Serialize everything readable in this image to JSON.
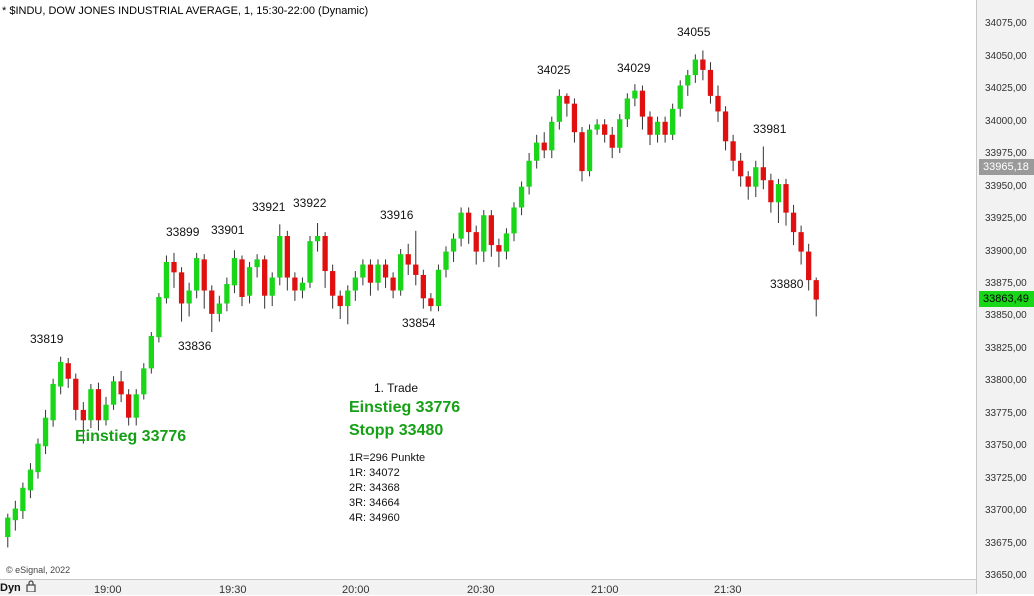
{
  "header": "* $INDU, DOW JONES INDUSTRIAL AVERAGE, 1, 15:30-22:00 (Dynamic)",
  "y_axis": {
    "ticks": [
      "34075,00",
      "34050,00",
      "34025,00",
      "34000,00",
      "33975,00",
      "33950,00",
      "33925,00",
      "33900,00",
      "33875,00",
      "33850,00",
      "33825,00",
      "33800,00",
      "33775,00",
      "33750,00",
      "33725,00",
      "33700,00",
      "33675,00",
      "33650,00"
    ],
    "gray_marker": "33965,18",
    "green_marker": "33863,49"
  },
  "x_axis": {
    "ticks": [
      "19:00",
      "19:30",
      "20:00",
      "20:30",
      "21:00",
      "21:30"
    ]
  },
  "level_labels": [
    "33819",
    "33836",
    "33899",
    "33901",
    "33921",
    "33922",
    "33916",
    "33854",
    "34025",
    "34029",
    "34055",
    "33981",
    "33880"
  ],
  "annotations": {
    "entry_left": "Einstieg 33776",
    "trade_title": "1. Trade",
    "entry": "Einstieg 33776",
    "stop": "Stopp 33480",
    "r_lines": [
      "1R=296 Punkte",
      "1R: 34072",
      "2R: 34368",
      "3R: 34664",
      "4R: 34960"
    ]
  },
  "footer": {
    "copyright": "© eSignal, 2022",
    "mode": "Dyn"
  },
  "colors": {
    "up": "#19d619",
    "down": "#e01010",
    "wick": "#333333",
    "gray_marker": "#9a9a9a",
    "green_marker": "#19d619",
    "text_green": "#16a016"
  },
  "chart_data": {
    "type": "candlestick",
    "title": "* $INDU, DOW JONES INDUSTRIAL AVERAGE, 1, 15:30-22:00 (Dynamic)",
    "y_range": [
      33650,
      34082
    ],
    "x_labels": [
      "19:00",
      "19:30",
      "20:00",
      "20:30",
      "21:00",
      "21:30"
    ],
    "candles": [
      [
        33680,
        33695,
        33672,
        33698
      ],
      [
        33693,
        33702,
        33685,
        33708
      ],
      [
        33700,
        33718,
        33694,
        33722
      ],
      [
        33716,
        33732,
        33710,
        33737
      ],
      [
        33730,
        33752,
        33725,
        33756
      ],
      [
        33750,
        33772,
        33744,
        33778
      ],
      [
        33770,
        33798,
        33765,
        33802
      ],
      [
        33796,
        33815,
        33790,
        33819
      ],
      [
        33814,
        33802,
        33795,
        33818
      ],
      [
        33802,
        33778,
        33770,
        33806
      ],
      [
        33778,
        33770,
        33752,
        33784
      ],
      [
        33770,
        33794,
        33764,
        33798
      ],
      [
        33794,
        33770,
        33762,
        33799
      ],
      [
        33770,
        33782,
        33766,
        33788
      ],
      [
        33782,
        33800,
        33778,
        33804
      ],
      [
        33800,
        33790,
        33784,
        33808
      ],
      [
        33790,
        33772,
        33766,
        33794
      ],
      [
        33772,
        33790,
        33766,
        33794
      ],
      [
        33790,
        33810,
        33786,
        33814
      ],
      [
        33810,
        33835,
        33806,
        33838
      ],
      [
        33834,
        33865,
        33830,
        33868
      ],
      [
        33864,
        33892,
        33860,
        33897
      ],
      [
        33892,
        33884,
        33872,
        33899
      ],
      [
        33884,
        33860,
        33846,
        33888
      ],
      [
        33860,
        33870,
        33850,
        33876
      ],
      [
        33870,
        33895,
        33864,
        33899
      ],
      [
        33894,
        33870,
        33856,
        33898
      ],
      [
        33870,
        33852,
        33838,
        33874
      ],
      [
        33852,
        33860,
        33846,
        33866
      ],
      [
        33860,
        33875,
        33854,
        33880
      ],
      [
        33874,
        33895,
        33868,
        33901
      ],
      [
        33894,
        33865,
        33858,
        33897
      ],
      [
        33866,
        33888,
        33860,
        33892
      ],
      [
        33888,
        33894,
        33880,
        33898
      ],
      [
        33894,
        33866,
        33856,
        33897
      ],
      [
        33866,
        33880,
        33858,
        33884
      ],
      [
        33880,
        33912,
        33874,
        33921
      ],
      [
        33912,
        33880,
        33870,
        33916
      ],
      [
        33880,
        33870,
        33862,
        33884
      ],
      [
        33870,
        33876,
        33864,
        33880
      ],
      [
        33876,
        33908,
        33872,
        33912
      ],
      [
        33908,
        33912,
        33900,
        33922
      ],
      [
        33912,
        33885,
        33872,
        33915
      ],
      [
        33885,
        33866,
        33856,
        33890
      ],
      [
        33866,
        33858,
        33848,
        33870
      ],
      [
        33858,
        33870,
        33844,
        33874
      ],
      [
        33870,
        33880,
        33862,
        33885
      ],
      [
        33880,
        33890,
        33874,
        33894
      ],
      [
        33890,
        33876,
        33866,
        33894
      ],
      [
        33876,
        33890,
        33870,
        33894
      ],
      [
        33890,
        33880,
        33872,
        33894
      ],
      [
        33880,
        33870,
        33864,
        33884
      ],
      [
        33870,
        33898,
        33866,
        33902
      ],
      [
        33898,
        33890,
        33882,
        33906
      ],
      [
        33890,
        33882,
        33874,
        33916
      ],
      [
        33882,
        33864,
        33856,
        33886
      ],
      [
        33864,
        33858,
        33854,
        33868
      ],
      [
        33858,
        33886,
        33854,
        33890
      ],
      [
        33886,
        33900,
        33880,
        33904
      ],
      [
        33900,
        33910,
        33892,
        33914
      ],
      [
        33910,
        33930,
        33904,
        33934
      ],
      [
        33930,
        33915,
        33906,
        33934
      ],
      [
        33915,
        33900,
        33890,
        33920
      ],
      [
        33900,
        33928,
        33892,
        33932
      ],
      [
        33928,
        33905,
        33896,
        33932
      ],
      [
        33905,
        33900,
        33888,
        33910
      ],
      [
        33900,
        33914,
        33894,
        33918
      ],
      [
        33914,
        33934,
        33908,
        33938
      ],
      [
        33934,
        33950,
        33928,
        33954
      ],
      [
        33950,
        33970,
        33944,
        33976
      ],
      [
        33970,
        33984,
        33964,
        33990
      ],
      [
        33984,
        33978,
        33972,
        33992
      ],
      [
        33978,
        34000,
        33972,
        34004
      ],
      [
        34000,
        34020,
        33994,
        34025
      ],
      [
        34020,
        34014,
        34004,
        34022
      ],
      [
        34014,
        33992,
        33984,
        34018
      ],
      [
        33992,
        33962,
        33954,
        33996
      ],
      [
        33962,
        33994,
        33958,
        33998
      ],
      [
        33994,
        33998,
        33990,
        34002
      ],
      [
        33998,
        33990,
        33984,
        34002
      ],
      [
        33990,
        33980,
        33972,
        33996
      ],
      [
        33980,
        34002,
        33976,
        34006
      ],
      [
        34002,
        34018,
        33996,
        34022
      ],
      [
        34018,
        34024,
        34012,
        34029
      ],
      [
        34024,
        34004,
        33994,
        34028
      ],
      [
        34004,
        33990,
        33982,
        34008
      ],
      [
        33990,
        34000,
        33984,
        34004
      ],
      [
        34000,
        33990,
        33984,
        34004
      ],
      [
        33990,
        34010,
        33986,
        34014
      ],
      [
        34010,
        34028,
        34004,
        34032
      ],
      [
        34028,
        34036,
        34020,
        34040
      ],
      [
        34036,
        34048,
        34030,
        34052
      ],
      [
        34048,
        34040,
        34032,
        34055
      ],
      [
        34040,
        34020,
        34014,
        34046
      ],
      [
        34020,
        34008,
        34000,
        34028
      ],
      [
        34008,
        33985,
        33978,
        34012
      ],
      [
        33985,
        33970,
        33962,
        33990
      ],
      [
        33970,
        33958,
        33950,
        33976
      ],
      [
        33958,
        33950,
        33940,
        33962
      ],
      [
        33950,
        33965,
        33942,
        33970
      ],
      [
        33965,
        33955,
        33948,
        33981
      ],
      [
        33955,
        33938,
        33930,
        33960
      ],
      [
        33938,
        33952,
        33922,
        33956
      ],
      [
        33952,
        33930,
        33920,
        33956
      ],
      [
        33930,
        33915,
        33905,
        33936
      ],
      [
        33915,
        33900,
        33890,
        33920
      ],
      [
        33900,
        33878,
        33870,
        33906
      ],
      [
        33878,
        33863,
        33850,
        33880
      ]
    ]
  }
}
